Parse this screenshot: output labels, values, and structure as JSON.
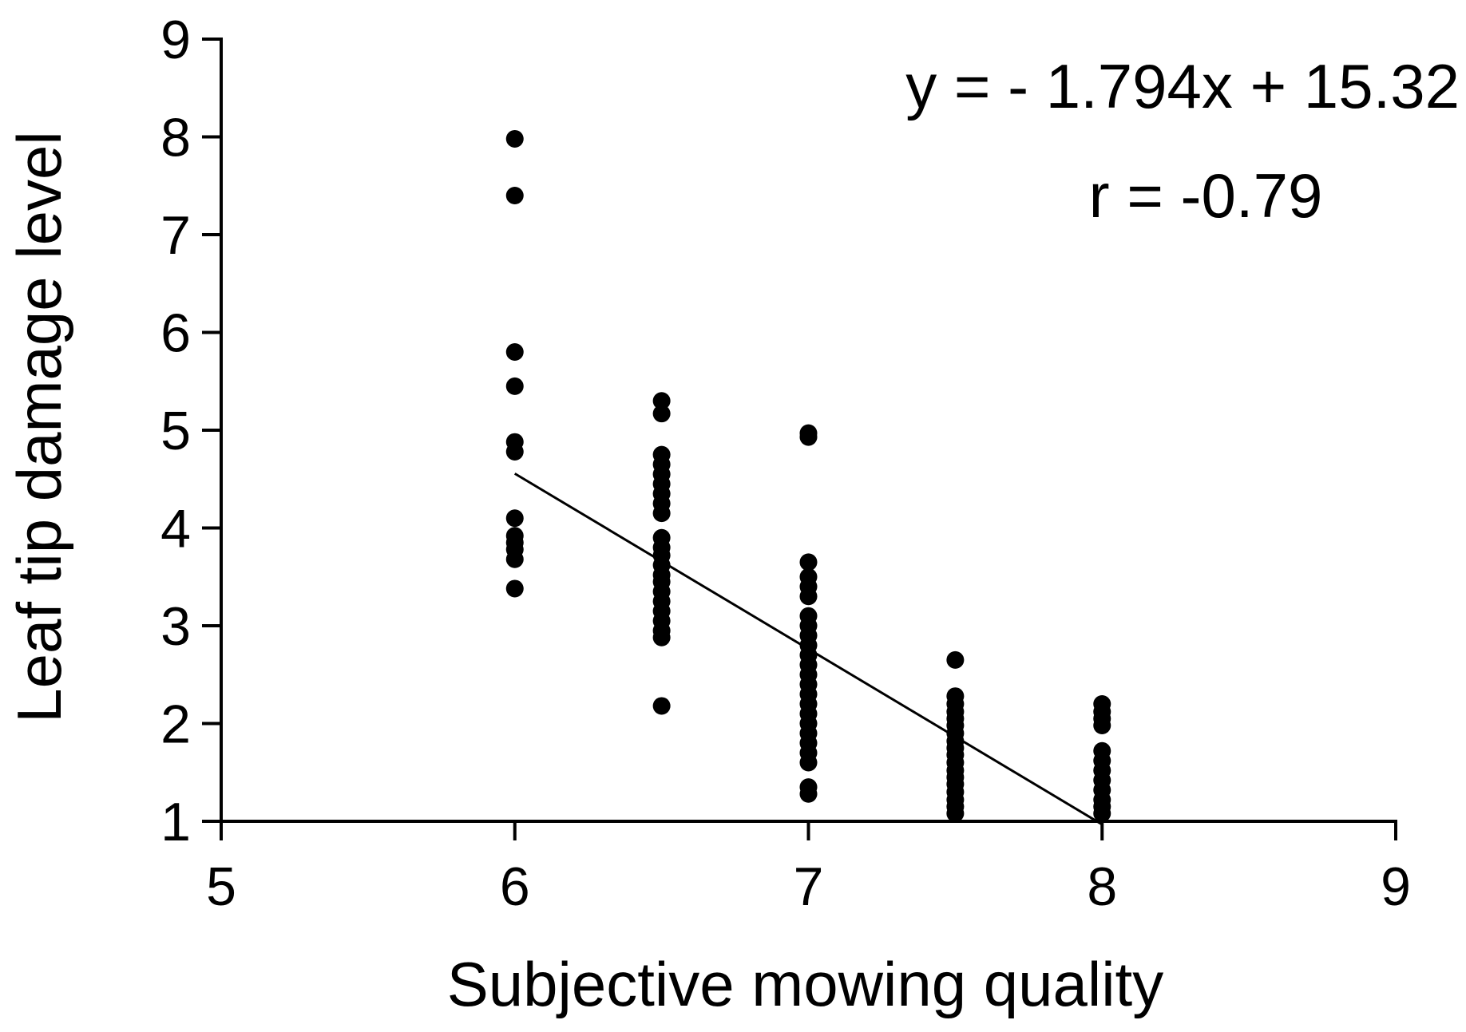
{
  "chart_data": {
    "type": "scatter",
    "title": "",
    "xlabel": "Subjective mowing quality",
    "ylabel": "Leaf tip damage level",
    "xlim": [
      5,
      9
    ],
    "ylim": [
      1,
      9
    ],
    "xticks": [
      "5",
      "6",
      "7",
      "8",
      "9"
    ],
    "yticks": [
      "1",
      "2",
      "3",
      "4",
      "5",
      "6",
      "7",
      "8",
      "9"
    ],
    "grid": false,
    "legend": "none",
    "annotations": [
      {
        "text": "y = - 1.794x + 15.32"
      },
      {
        "text": "r = -0.79"
      }
    ],
    "regression": {
      "slope": -1.794,
      "intercept": 15.32,
      "x_range": [
        6,
        8
      ]
    },
    "points": [
      [
        6,
        7.98
      ],
      [
        6,
        7.4
      ],
      [
        6,
        5.8
      ],
      [
        6,
        5.45
      ],
      [
        6,
        4.88
      ],
      [
        6,
        4.78
      ],
      [
        6,
        4.1
      ],
      [
        6,
        3.92
      ],
      [
        6,
        3.85
      ],
      [
        6,
        3.78
      ],
      [
        6,
        3.68
      ],
      [
        6,
        3.38
      ],
      [
        6.5,
        5.3
      ],
      [
        6.5,
        5.17
      ],
      [
        6.5,
        4.75
      ],
      [
        6.5,
        4.65
      ],
      [
        6.5,
        4.55
      ],
      [
        6.5,
        4.45
      ],
      [
        6.5,
        4.35
      ],
      [
        6.5,
        4.25
      ],
      [
        6.5,
        4.15
      ],
      [
        6.5,
        3.9
      ],
      [
        6.5,
        3.8
      ],
      [
        6.5,
        3.72
      ],
      [
        6.5,
        3.62
      ],
      [
        6.5,
        3.52
      ],
      [
        6.5,
        3.45
      ],
      [
        6.5,
        3.35
      ],
      [
        6.5,
        3.25
      ],
      [
        6.5,
        3.15
      ],
      [
        6.5,
        3.05
      ],
      [
        6.5,
        2.95
      ],
      [
        6.5,
        2.88
      ],
      [
        6.5,
        2.18
      ],
      [
        7,
        4.97
      ],
      [
        7,
        4.93
      ],
      [
        7,
        3.65
      ],
      [
        7,
        3.5
      ],
      [
        7,
        3.4
      ],
      [
        7,
        3.3
      ],
      [
        7,
        3.1
      ],
      [
        7,
        3.0
      ],
      [
        7,
        2.9
      ],
      [
        7,
        2.8
      ],
      [
        7,
        2.7
      ],
      [
        7,
        2.6
      ],
      [
        7,
        2.5
      ],
      [
        7,
        2.4
      ],
      [
        7,
        2.3
      ],
      [
        7,
        2.2
      ],
      [
        7,
        2.1
      ],
      [
        7,
        2.0
      ],
      [
        7,
        1.9
      ],
      [
        7,
        1.8
      ],
      [
        7,
        1.7
      ],
      [
        7,
        1.6
      ],
      [
        7,
        1.35
      ],
      [
        7,
        1.28
      ],
      [
        7.5,
        2.65
      ],
      [
        7.5,
        2.28
      ],
      [
        7.5,
        2.2
      ],
      [
        7.5,
        2.12
      ],
      [
        7.5,
        2.05
      ],
      [
        7.5,
        1.98
      ],
      [
        7.5,
        1.9
      ],
      [
        7.5,
        1.82
      ],
      [
        7.5,
        1.75
      ],
      [
        7.5,
        1.68
      ],
      [
        7.5,
        1.6
      ],
      [
        7.5,
        1.52
      ],
      [
        7.5,
        1.45
      ],
      [
        7.5,
        1.38
      ],
      [
        7.5,
        1.3
      ],
      [
        7.5,
        1.22
      ],
      [
        7.5,
        1.15
      ],
      [
        7.5,
        1.08
      ],
      [
        8,
        2.2
      ],
      [
        8,
        2.12
      ],
      [
        8,
        2.05
      ],
      [
        8,
        1.98
      ],
      [
        8,
        1.72
      ],
      [
        8,
        1.62
      ],
      [
        8,
        1.52
      ],
      [
        8,
        1.42
      ],
      [
        8,
        1.32
      ],
      [
        8,
        1.22
      ],
      [
        8,
        1.15
      ],
      [
        8,
        1.08
      ]
    ]
  }
}
